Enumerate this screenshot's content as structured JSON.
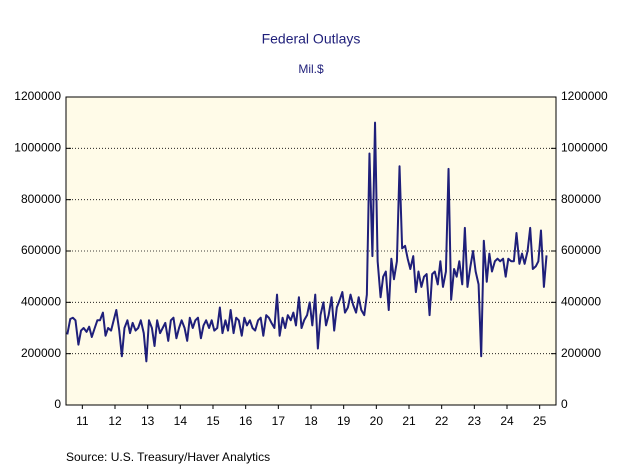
{
  "chart_data": {
    "type": "line",
    "title": "Federal Outlays",
    "subtitle": "Mil.$",
    "source": "Source:  U.S. Treasury/Haver Analytics",
    "x": [
      2011.04,
      2011.13,
      2011.21,
      2011.29,
      2011.38,
      2011.46,
      2011.54,
      2011.63,
      2011.71,
      2011.79,
      2011.88,
      2011.96,
      2012.04,
      2012.13,
      2012.21,
      2012.29,
      2012.38,
      2012.46,
      2012.54,
      2012.63,
      2012.71,
      2012.79,
      2012.88,
      2012.96,
      2013.04,
      2013.13,
      2013.21,
      2013.29,
      2013.38,
      2013.46,
      2013.54,
      2013.63,
      2013.71,
      2013.79,
      2013.88,
      2013.96,
      2014.04,
      2014.13,
      2014.21,
      2014.29,
      2014.38,
      2014.46,
      2014.54,
      2014.63,
      2014.71,
      2014.79,
      2014.88,
      2014.96,
      2015.04,
      2015.13,
      2015.21,
      2015.29,
      2015.38,
      2015.46,
      2015.54,
      2015.63,
      2015.71,
      2015.79,
      2015.88,
      2015.96,
      2016.04,
      2016.13,
      2016.21,
      2016.29,
      2016.38,
      2016.46,
      2016.54,
      2016.63,
      2016.71,
      2016.79,
      2016.88,
      2016.96,
      2017.04,
      2017.13,
      2017.21,
      2017.29,
      2017.38,
      2017.46,
      2017.54,
      2017.63,
      2017.71,
      2017.79,
      2017.88,
      2017.96,
      2018.04,
      2018.13,
      2018.21,
      2018.29,
      2018.38,
      2018.46,
      2018.54,
      2018.63,
      2018.71,
      2018.79,
      2018.88,
      2018.96,
      2019.04,
      2019.13,
      2019.21,
      2019.29,
      2019.38,
      2019.46,
      2019.54,
      2019.63,
      2019.71,
      2019.79,
      2019.88,
      2019.96,
      2020.04,
      2020.13,
      2020.21,
      2020.29,
      2020.38,
      2020.46,
      2020.54,
      2020.63,
      2020.71,
      2020.79,
      2020.88,
      2020.96,
      2021.04,
      2021.13,
      2021.21,
      2021.29,
      2021.38,
      2021.46,
      2021.54,
      2021.63,
      2021.71,
      2021.79,
      2021.88,
      2021.96,
      2022.04,
      2022.13,
      2022.21,
      2022.29,
      2022.38,
      2022.46,
      2022.54,
      2022.63,
      2022.71,
      2022.79,
      2022.88,
      2022.96,
      2023.04,
      2023.13,
      2023.21,
      2023.29,
      2023.38,
      2023.46,
      2023.54,
      2023.63,
      2023.71,
      2023.79,
      2023.88,
      2023.96,
      2024.04,
      2024.13,
      2024.21,
      2024.29,
      2024.38,
      2024.46,
      2024.54,
      2024.63,
      2024.71,
      2024.79,
      2024.88,
      2024.96,
      2025.04,
      2025.13,
      2025.21,
      2025.29,
      2025.38,
      2025.46,
      2025.54,
      2025.63,
      2025.71
    ],
    "series": [
      {
        "name": "Federal Outlays",
        "color": "#1f1f7a",
        "values": [
          275000,
          335000,
          340000,
          330000,
          235000,
          290000,
          300000,
          285000,
          305000,
          265000,
          300000,
          330000,
          330000,
          360000,
          270000,
          300000,
          290000,
          330000,
          370000,
          290000,
          190000,
          300000,
          330000,
          280000,
          320000,
          290000,
          300000,
          330000,
          280000,
          170000,
          330000,
          300000,
          230000,
          330000,
          280000,
          300000,
          320000,
          250000,
          330000,
          340000,
          260000,
          300000,
          330000,
          300000,
          250000,
          340000,
          300000,
          330000,
          340000,
          260000,
          310000,
          330000,
          300000,
          330000,
          290000,
          300000,
          380000,
          280000,
          330000,
          290000,
          370000,
          280000,
          340000,
          330000,
          270000,
          340000,
          310000,
          330000,
          300000,
          290000,
          330000,
          340000,
          270000,
          350000,
          340000,
          320000,
          300000,
          430000,
          270000,
          340000,
          300000,
          350000,
          330000,
          360000,
          310000,
          420000,
          300000,
          330000,
          350000,
          400000,
          310000,
          430000,
          220000,
          350000,
          400000,
          310000,
          350000,
          420000,
          290000,
          380000,
          410000,
          440000,
          360000,
          380000,
          430000,
          390000,
          360000,
          420000,
          370000,
          350000,
          430000,
          980000,
          580000,
          1100000,
          560000,
          420000,
          500000,
          520000,
          370000,
          570000,
          490000,
          560000,
          930000,
          610000,
          620000,
          570000,
          530000,
          580000,
          440000,
          520000,
          460000,
          500000,
          510000,
          350000,
          510000,
          520000,
          470000,
          560000,
          460000,
          520000,
          920000,
          410000,
          530000,
          500000,
          560000,
          470000,
          690000,
          460000,
          540000,
          600000,
          520000,
          470000,
          190000,
          640000,
          480000,
          590000,
          520000,
          560000,
          570000,
          560000,
          570000,
          500000,
          570000,
          560000,
          560000,
          670000,
          550000,
          590000,
          550000,
          600000,
          690000,
          530000,
          540000,
          560000,
          680000,
          460000,
          583000
        ]
      }
    ],
    "xlim": [
      2011,
      2026
    ],
    "xticks": [
      {
        "value": 2011.5,
        "label": "11"
      },
      {
        "value": 2012.5,
        "label": "12"
      },
      {
        "value": 2013.5,
        "label": "13"
      },
      {
        "value": 2014.5,
        "label": "14"
      },
      {
        "value": 2015.5,
        "label": "15"
      },
      {
        "value": 2016.5,
        "label": "16"
      },
      {
        "value": 2017.5,
        "label": "17"
      },
      {
        "value": 2018.5,
        "label": "18"
      },
      {
        "value": 2019.5,
        "label": "19"
      },
      {
        "value": 2020.5,
        "label": "20"
      },
      {
        "value": 2021.5,
        "label": "21"
      },
      {
        "value": 2022.5,
        "label": "22"
      },
      {
        "value": 2023.5,
        "label": "23"
      },
      {
        "value": 2024.5,
        "label": "24"
      },
      {
        "value": 2025.5,
        "label": "25"
      }
    ],
    "ylim": [
      0,
      1200000
    ],
    "yticks": [
      0,
      200000,
      400000,
      600000,
      800000,
      1000000,
      1200000
    ],
    "grid": true,
    "background": "#fffbe8"
  }
}
